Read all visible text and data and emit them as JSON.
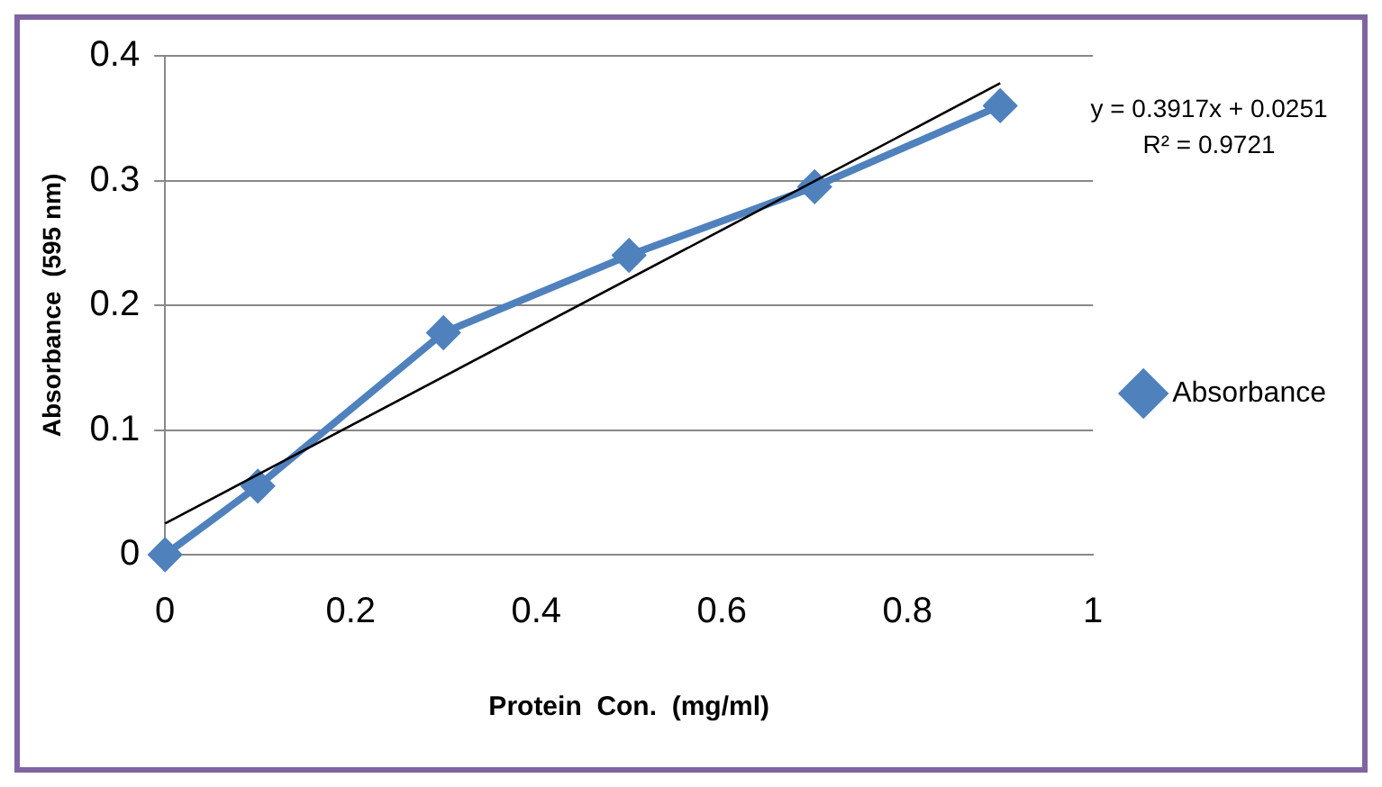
{
  "chart_data": {
    "type": "line",
    "xlabel": "Protein  Con.  (mg/ml)",
    "ylabel": "Absorbance  (595 nm)",
    "x": [
      0,
      0.1,
      0.3,
      0.5,
      0.7,
      0.9
    ],
    "series": [
      {
        "name": "Absorbance",
        "color": "#4f81bd",
        "values": [
          0,
          0.055,
          0.178,
          0.24,
          0.295,
          0.36
        ],
        "marker": "diamond",
        "line_style": "solid"
      },
      {
        "color": "#000000",
        "x": [
          0,
          0.9
        ],
        "values": [
          0.025,
          0.378
        ],
        "marker": "none",
        "line_style": "solid"
      }
    ],
    "xlim": [
      0,
      1
    ],
    "xticks": [
      0,
      0.2,
      0.4,
      0.6,
      0.8,
      1
    ],
    "ylim": [
      0,
      0.4
    ],
    "yticks": [
      0,
      0.1,
      0.2,
      0.3,
      0.4
    ],
    "grid": "y",
    "legend": "right",
    "annotations": [
      "y = 0.3917x + 0.0251",
      "R² = 0.9721"
    ]
  }
}
